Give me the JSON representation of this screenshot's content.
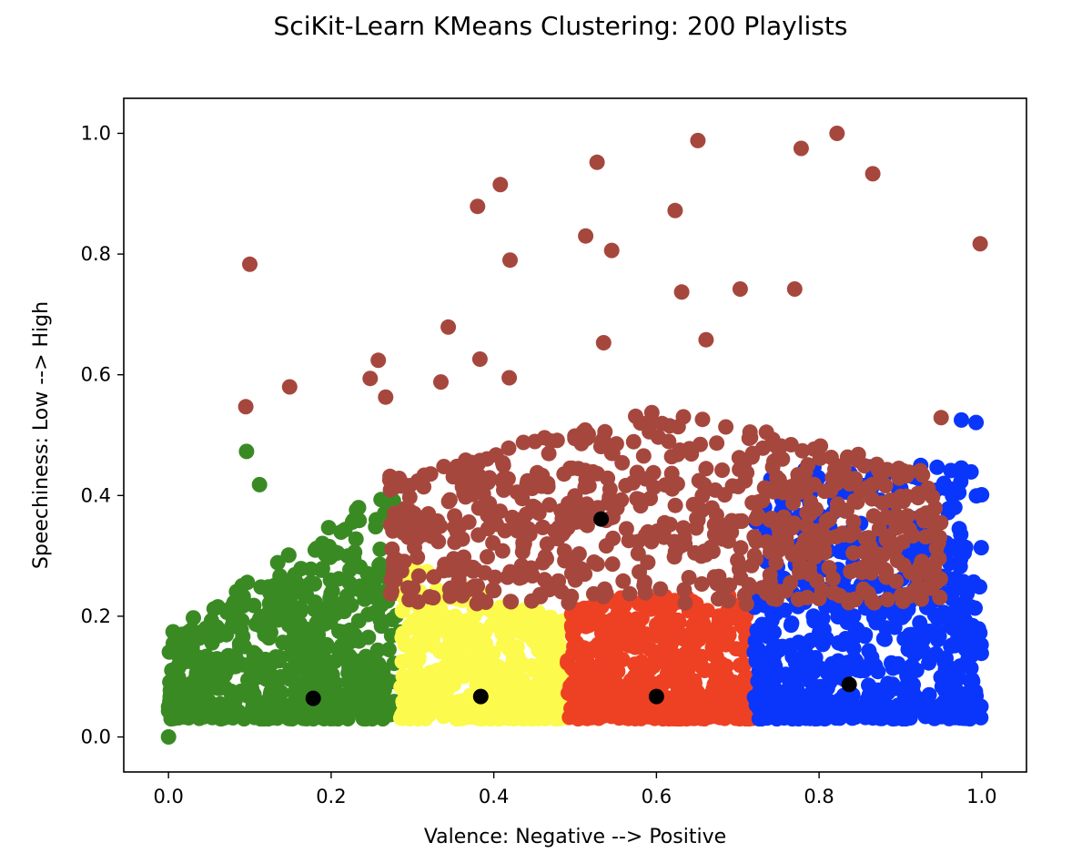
{
  "chart_data": {
    "type": "scatter",
    "title": "SciKit-Learn KMeans Clustering: 200 Playlists",
    "xlabel": "Valence: Negative --> Positive",
    "ylabel": "Speechiness: Low --> High",
    "xlim": [
      -0.055,
      1.055
    ],
    "ylim": [
      -0.058,
      1.058
    ],
    "xticks": [
      "0.0",
      "0.2",
      "0.4",
      "0.6",
      "0.8",
      "1.0"
    ],
    "yticks": [
      "0.0",
      "0.2",
      "0.4",
      "0.6",
      "0.8",
      "1.0"
    ],
    "grid": false,
    "clusters": [
      {
        "color": "#3a8a24",
        "x_range": [
          0.0,
          0.285
        ],
        "y_range": [
          0.03,
          0.42
        ],
        "count": 600
      },
      {
        "color": "#fcfa4c",
        "x_range": [
          0.285,
          0.49
        ],
        "y_range": [
          0.03,
          0.29
        ],
        "count": 500
      },
      {
        "color": "#ee4123",
        "x_range": [
          0.49,
          0.72
        ],
        "y_range": [
          0.03,
          0.235
        ],
        "count": 500
      },
      {
        "color": "#0a36fb",
        "x_range": [
          0.72,
          1.0
        ],
        "y_range": [
          0.03,
          0.45
        ],
        "count": 650
      },
      {
        "color": "#a6473e",
        "x_range": [
          0.27,
          0.95
        ],
        "y_range": [
          0.22,
          0.55
        ],
        "count": 700
      }
    ],
    "outliers": {
      "brown": [
        [
          0.1,
          0.783
        ],
        [
          0.095,
          0.547
        ],
        [
          0.149,
          0.58
        ],
        [
          0.258,
          0.624
        ],
        [
          0.248,
          0.594
        ],
        [
          0.267,
          0.563
        ],
        [
          0.335,
          0.588
        ],
        [
          0.344,
          0.679
        ],
        [
          0.38,
          0.879
        ],
        [
          0.408,
          0.915
        ],
        [
          0.383,
          0.626
        ],
        [
          0.419,
          0.595
        ],
        [
          0.42,
          0.79
        ],
        [
          0.513,
          0.83
        ],
        [
          0.527,
          0.952
        ],
        [
          0.545,
          0.806
        ],
        [
          0.535,
          0.653
        ],
        [
          0.623,
          0.872
        ],
        [
          0.631,
          0.737
        ],
        [
          0.651,
          0.988
        ],
        [
          0.661,
          0.658
        ],
        [
          0.703,
          0.742
        ],
        [
          0.77,
          0.742
        ],
        [
          0.778,
          0.975
        ],
        [
          0.822,
          1.0
        ],
        [
          0.866,
          0.933
        ],
        [
          0.998,
          0.817
        ],
        [
          0.95,
          0.529
        ]
      ],
      "blue": [
        [
          0.975,
          0.525
        ],
        [
          0.993,
          0.521
        ]
      ],
      "green": [
        [
          0.0,
          0.0
        ],
        [
          0.0,
          0.043
        ],
        [
          0.0,
          0.05
        ],
        [
          0.015,
          0.077
        ],
        [
          0.096,
          0.473
        ],
        [
          0.112,
          0.418
        ]
      ]
    },
    "centroids": [
      [
        0.178,
        0.064
      ],
      [
        0.384,
        0.067
      ],
      [
        0.6,
        0.067
      ],
      [
        0.837,
        0.087
      ],
      [
        0.532,
        0.361
      ]
    ],
    "centroid_color": "#000000"
  }
}
